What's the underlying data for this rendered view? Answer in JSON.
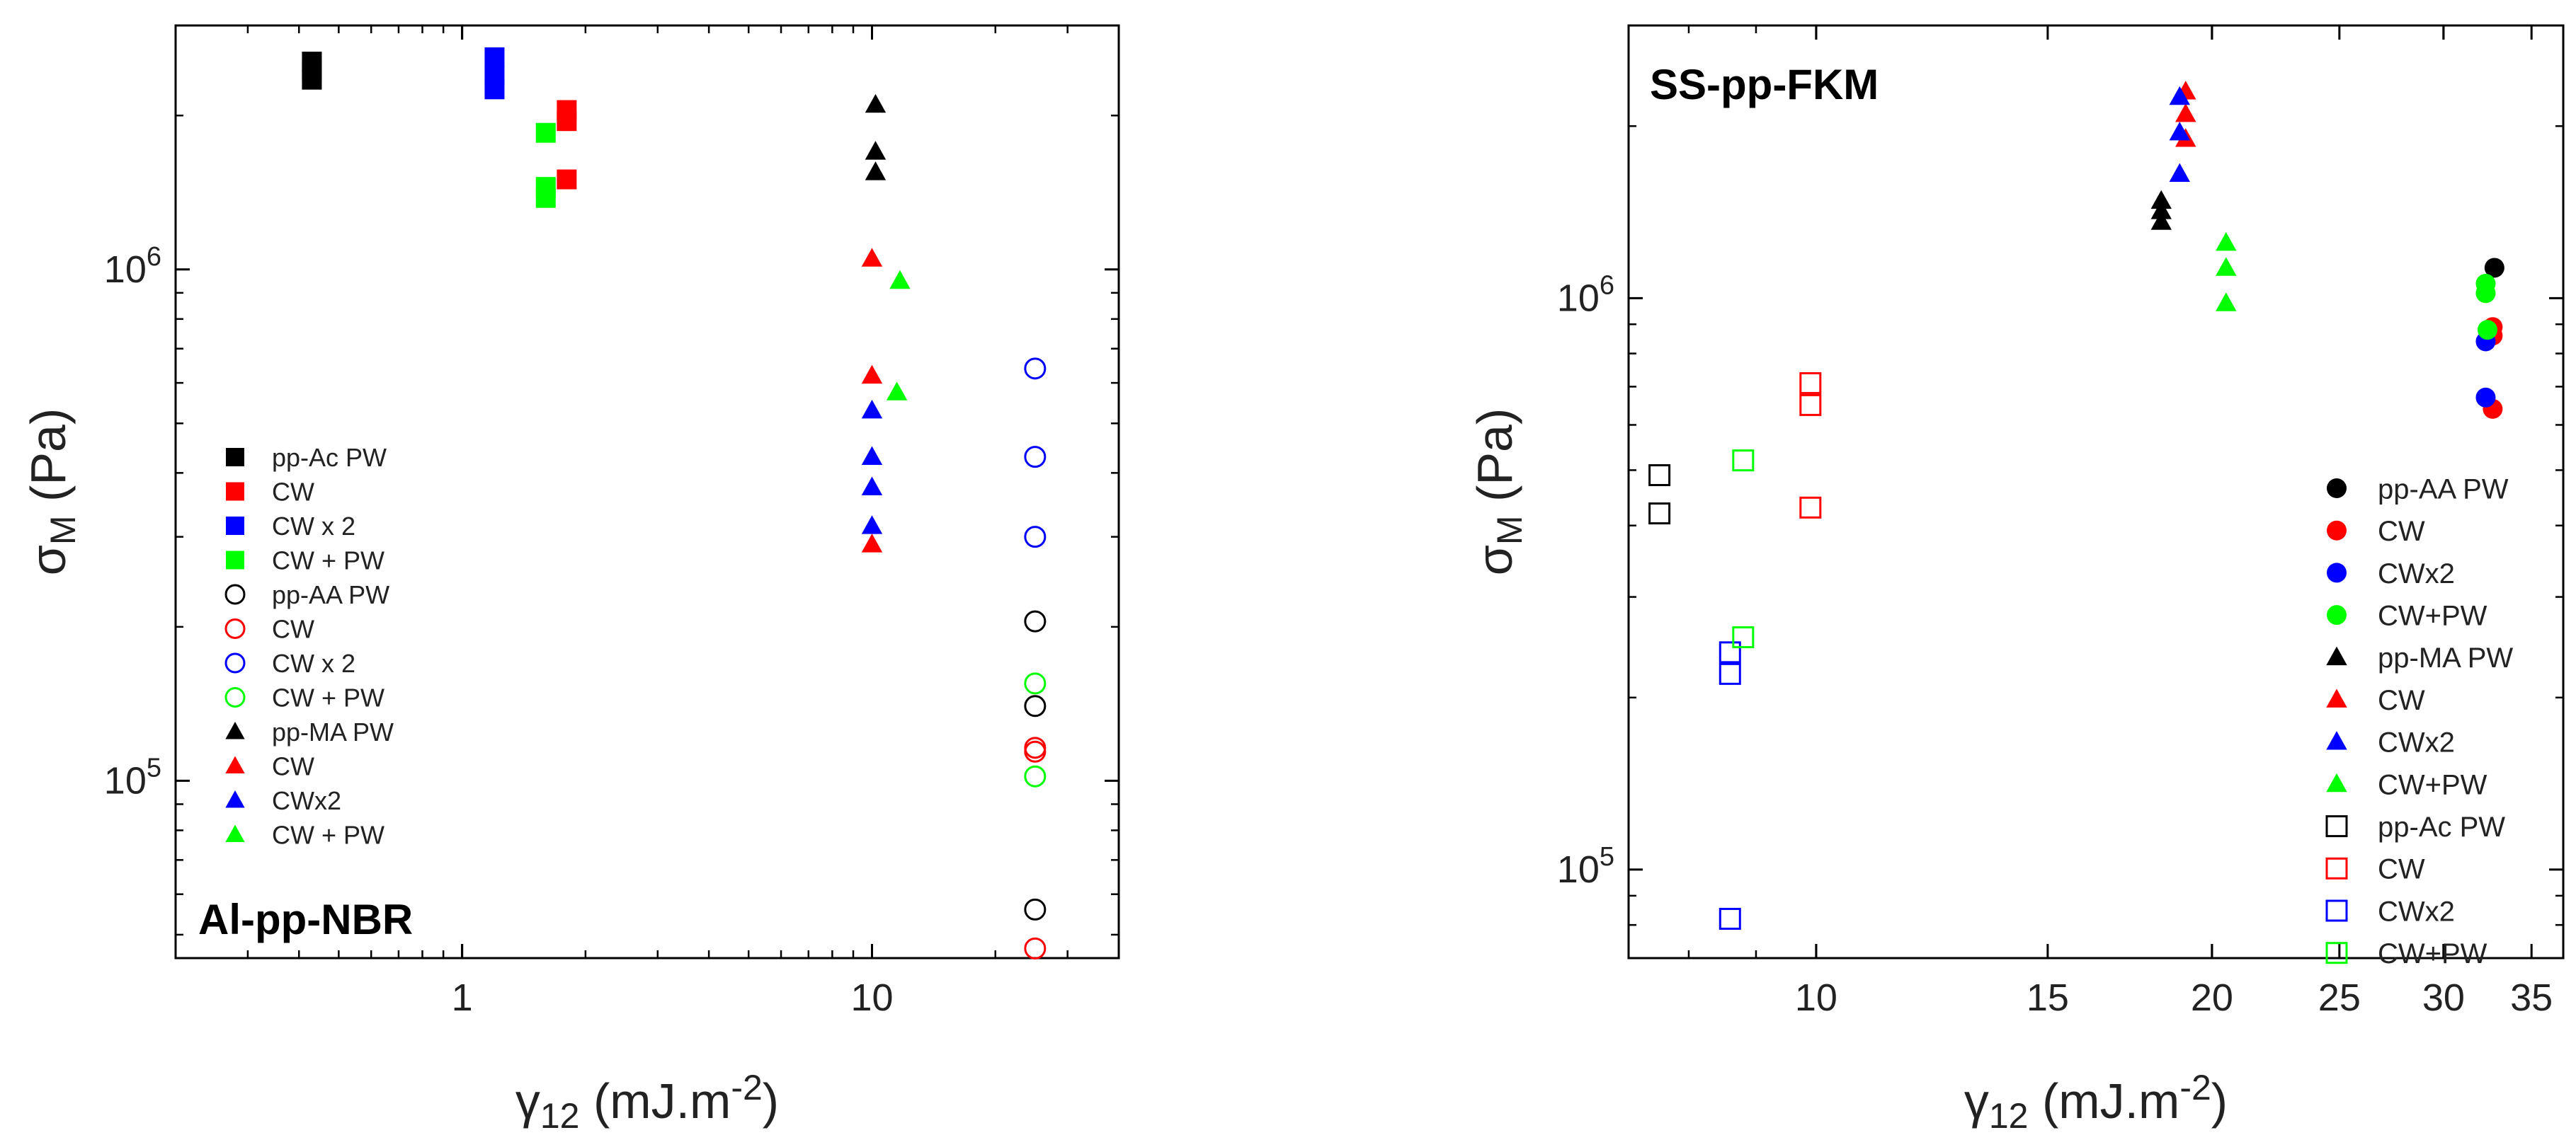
{
  "chart_data": [
    {
      "type": "scatter",
      "panel_label": "Al-pp-NBR",
      "xscale": "log",
      "yscale": "log",
      "xlim": [
        0.2,
        40
      ],
      "ylim": [
        45000,
        3000000
      ],
      "xticks": [
        {
          "v": 1,
          "label": "1"
        },
        {
          "v": 10,
          "label": "10"
        }
      ],
      "yticks": [
        {
          "v": 100000,
          "base": "10",
          "exp": "5"
        },
        {
          "v": 1000000,
          "base": "10",
          "exp": "6"
        }
      ],
      "xlabel": {
        "sym": "γ",
        "sub": "12",
        "rest": " (mJ.m",
        "sup": "-2",
        "end": ")"
      },
      "ylabel": {
        "sym": "σ",
        "sub": "M",
        "rest": " (Pa)"
      },
      "legend_position": "left",
      "series": [
        {
          "name": "pp-Ac PW",
          "marker": "square",
          "filled": true,
          "color": "#000000",
          "points": [
            [
              0.43,
              2550000
            ],
            [
              0.43,
              2450000
            ],
            [
              0.43,
              2350000
            ]
          ]
        },
        {
          "name": "CW",
          "marker": "square",
          "filled": true,
          "color": "#ff0000",
          "points": [
            [
              1.8,
              2050000
            ],
            [
              1.8,
              1950000
            ],
            [
              1.8,
              1500000
            ]
          ]
        },
        {
          "name": "CW x 2",
          "marker": "square",
          "filled": true,
          "color": "#0000ff",
          "points": [
            [
              1.2,
              2600000
            ],
            [
              1.2,
              2400000
            ],
            [
              1.2,
              2250000
            ]
          ]
        },
        {
          "name": "CW + PW",
          "marker": "square",
          "filled": true,
          "color": "#00ff00",
          "points": [
            [
              1.6,
              1850000
            ],
            [
              1.6,
              1450000
            ],
            [
              1.6,
              1380000
            ]
          ]
        },
        {
          "name": "pp-AA PW",
          "marker": "circle",
          "filled": false,
          "color": "#000000",
          "points": [
            [
              25,
              205000
            ],
            [
              25,
              140000
            ],
            [
              25,
              56000
            ]
          ]
        },
        {
          "name": "CW",
          "marker": "circle",
          "filled": false,
          "color": "#ff0000",
          "points": [
            [
              25,
              116000
            ],
            [
              25,
              114000
            ],
            [
              25,
              47000
            ]
          ]
        },
        {
          "name": "CW x 2",
          "marker": "circle",
          "filled": false,
          "color": "#0000ff",
          "points": [
            [
              25,
              640000
            ],
            [
              25,
              430000
            ],
            [
              25,
              300000
            ]
          ]
        },
        {
          "name": "CW + PW",
          "marker": "circle",
          "filled": false,
          "color": "#00ff00",
          "points": [
            [
              25,
              155000
            ],
            [
              25,
              102000
            ]
          ]
        },
        {
          "name": "pp-MA PW",
          "marker": "triangle",
          "filled": true,
          "color": "#000000",
          "points": [
            [
              10.2,
              2100000
            ],
            [
              10.2,
              1700000
            ],
            [
              10.2,
              1550000
            ]
          ]
        },
        {
          "name": "CW",
          "marker": "triangle",
          "filled": true,
          "color": "#ff0000",
          "points": [
            [
              10,
              1050000
            ],
            [
              10,
              620000
            ],
            [
              10,
              290000
            ]
          ]
        },
        {
          "name": "CWx2",
          "marker": "triangle",
          "filled": true,
          "color": "#0000ff",
          "points": [
            [
              10,
              530000
            ],
            [
              10,
              430000
            ],
            [
              10,
              375000
            ],
            [
              10,
              315000
            ]
          ]
        },
        {
          "name": "CW + PW",
          "marker": "triangle",
          "filled": true,
          "color": "#00ff00",
          "points": [
            [
              11.7,
              950000
            ],
            [
              11.5,
              575000
            ]
          ]
        }
      ]
    },
    {
      "type": "scatter",
      "panel_label": "SS-pp-FKM",
      "xscale": "log",
      "yscale": "log",
      "xlim": [
        7.2,
        37
      ],
      "ylim": [
        70000,
        3000000
      ],
      "xticks": [
        {
          "v": 10,
          "label": "10"
        },
        {
          "v": 15,
          "label": "15"
        },
        {
          "v": 20,
          "label": "20"
        },
        {
          "v": 25,
          "label": "25"
        },
        {
          "v": 30,
          "label": "30"
        },
        {
          "v": 35,
          "label": "35"
        }
      ],
      "yticks": [
        {
          "v": 100000,
          "base": "10",
          "exp": "5"
        },
        {
          "v": 1000000,
          "base": "10",
          "exp": "6"
        }
      ],
      "xlabel": {
        "sym": "γ",
        "sub": "12",
        "rest": " (mJ.m",
        "sup": "-2",
        "end": ")"
      },
      "ylabel": {
        "sym": "σ",
        "sub": "M",
        "rest": " (Pa)"
      },
      "legend_position": "bottom-right",
      "series": [
        {
          "name": "pp-AA PW",
          "marker": "circle",
          "filled": true,
          "color": "#000000",
          "points": [
            [
              32.8,
              1130000
            ]
          ]
        },
        {
          "name": "CW",
          "marker": "circle",
          "filled": true,
          "color": "#ff0000",
          "points": [
            [
              32.7,
              890000
            ],
            [
              32.7,
              860000
            ],
            [
              32.7,
              640000
            ]
          ]
        },
        {
          "name": "CWx2",
          "marker": "circle",
          "filled": true,
          "color": "#0000ff",
          "points": [
            [
              32.3,
              840000
            ],
            [
              32.3,
              670000
            ]
          ]
        },
        {
          "name": "CW+PW",
          "marker": "circle",
          "filled": true,
          "color": "#00ff00",
          "points": [
            [
              32.3,
              1060000
            ],
            [
              32.3,
              1020000
            ],
            [
              32.4,
              880000
            ]
          ]
        },
        {
          "name": "pp-MA PW",
          "marker": "triangle",
          "filled": true,
          "color": "#000000",
          "points": [
            [
              18.3,
              1480000
            ],
            [
              18.3,
              1420000
            ],
            [
              18.3,
              1360000
            ]
          ]
        },
        {
          "name": "CW",
          "marker": "triangle",
          "filled": true,
          "color": "#ff0000",
          "points": [
            [
              19.1,
              2300000
            ],
            [
              19.1,
              2100000
            ],
            [
              19.1,
              1900000
            ]
          ]
        },
        {
          "name": "CWx2",
          "marker": "triangle",
          "filled": true,
          "color": "#0000ff",
          "points": [
            [
              18.9,
              2250000
            ],
            [
              18.9,
              1950000
            ],
            [
              18.9,
              1650000
            ]
          ]
        },
        {
          "name": "CW+PW",
          "marker": "triangle",
          "filled": true,
          "color": "#00ff00",
          "points": [
            [
              20.5,
              1250000
            ],
            [
              20.5,
              1130000
            ],
            [
              20.5,
              980000
            ]
          ]
        },
        {
          "name": "pp-Ac PW",
          "marker": "square",
          "filled": false,
          "color": "#000000",
          "points": [
            [
              7.6,
              490000
            ],
            [
              7.6,
              420000
            ]
          ]
        },
        {
          "name": "CW",
          "marker": "square",
          "filled": false,
          "color": "#ff0000",
          "points": [
            [
              9.9,
              710000
            ],
            [
              9.9,
              650000
            ],
            [
              9.9,
              430000
            ]
          ]
        },
        {
          "name": "CWx2",
          "marker": "square",
          "filled": false,
          "color": "#0000ff",
          "points": [
            [
              8.6,
              240000
            ],
            [
              8.6,
              220000
            ],
            [
              8.6,
              82000
            ]
          ]
        },
        {
          "name": "CW+PW",
          "marker": "square",
          "filled": false,
          "color": "#00ff00",
          "points": [
            [
              8.8,
              520000
            ],
            [
              8.8,
              255000
            ]
          ]
        }
      ]
    }
  ]
}
